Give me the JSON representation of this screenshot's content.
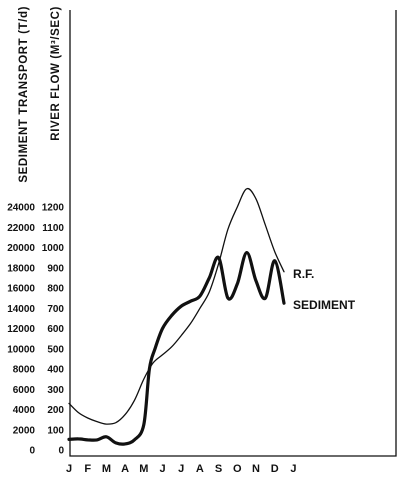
{
  "chart_data": {
    "type": "line",
    "ylabel_left": "SEDIMENT TRANSPORT (T/d)",
    "ylabel_right": "RIVER FLOW (M³/SEC)",
    "x_categories": [
      "J",
      "F",
      "M",
      "A",
      "M",
      "J",
      "J",
      "A",
      "S",
      "O",
      "N",
      "D",
      "J"
    ],
    "sediment_ticks": [
      "0",
      "2000",
      "4000",
      "6000",
      "8000",
      "10000",
      "12000",
      "14000",
      "16000",
      "18000",
      "20000",
      "22000",
      "24000"
    ],
    "flow_ticks": [
      "0",
      "100",
      "200",
      "300",
      "400",
      "500",
      "600",
      "700",
      "800",
      "900",
      "1000",
      "1100",
      "1200"
    ],
    "sediment_range": [
      0,
      24000
    ],
    "flow_range": [
      0,
      1200
    ],
    "grid": false,
    "series": [
      {
        "name": "R.F.",
        "axis": "flow",
        "stroke": "thin",
        "x": [
          0,
          0.5,
          1,
          1.5,
          2,
          2.5,
          3,
          3.5,
          4,
          4.5,
          5,
          5.5,
          6,
          6.5,
          7,
          7.5,
          8,
          8.5,
          9,
          9.5,
          10,
          10.5,
          11,
          11.5
        ],
        "values": [
          230,
          185,
          158,
          140,
          128,
          135,
          175,
          245,
          350,
          430,
          470,
          510,
          565,
          625,
          700,
          780,
          920,
          1090,
          1200,
          1290,
          1240,
          1110,
          980,
          880
        ]
      },
      {
        "name": "SEDIMENT",
        "axis": "sediment",
        "stroke": "thick",
        "x": [
          0,
          0.5,
          1,
          1.5,
          2,
          2.5,
          3,
          3.5,
          4,
          4.3,
          4.6,
          5,
          5.5,
          6,
          6.5,
          7,
          7.5,
          8,
          8.5,
          9,
          9.5,
          10,
          10.5,
          11,
          11.5
        ],
        "values": [
          1050,
          1100,
          1000,
          1000,
          1300,
          700,
          600,
          1000,
          2500,
          8000,
          10000,
          12000,
          13300,
          14200,
          14700,
          15200,
          17000,
          19000,
          15000,
          16400,
          19500,
          16700,
          15000,
          18700,
          14500
        ]
      }
    ]
  }
}
